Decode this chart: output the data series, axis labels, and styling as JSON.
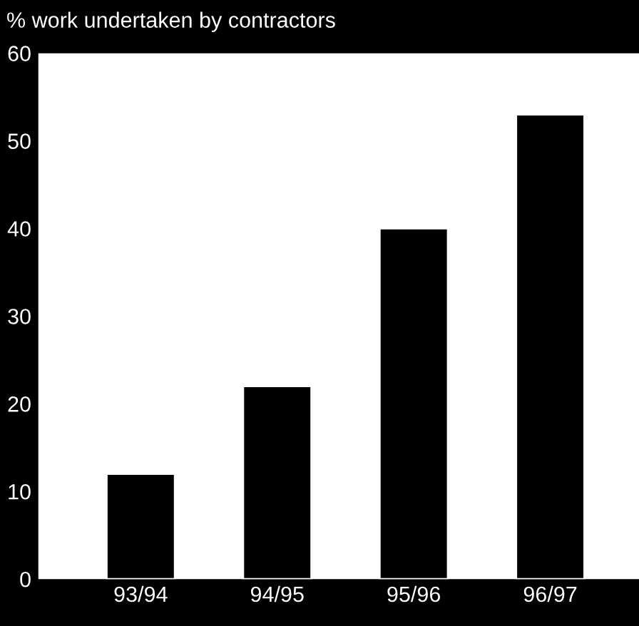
{
  "chart_data": {
    "type": "bar",
    "title": "% work undertaken by contractors",
    "categories": [
      "93/94",
      "94/95",
      "95/96",
      "96/97"
    ],
    "values": [
      12,
      22,
      40,
      53
    ],
    "color": "#000000",
    "ylim": [
      0,
      60
    ],
    "yticks": [
      0,
      10,
      20,
      30,
      40,
      50,
      60
    ],
    "grid": false
  }
}
